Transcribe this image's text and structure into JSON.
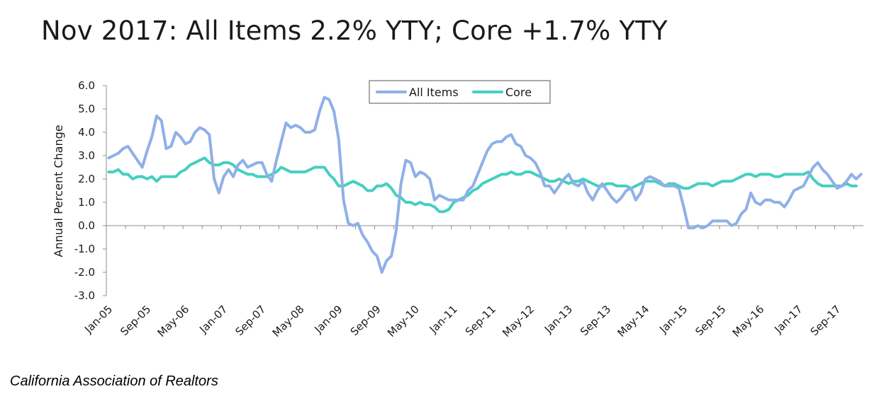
{
  "source": "California Association of Realtors",
  "colors": {
    "all_items": "#8fb0e8",
    "core": "#45cfc0",
    "axis": "#8c8c8c"
  },
  "chart_data": {
    "type": "line",
    "title": "Nov 2017: All Items 2.2% YTY; Core +1.7% YTY",
    "xlabel": "",
    "ylabel": "Annual Percent Change",
    "ylim": [
      -3.0,
      6.0
    ],
    "yticks": [
      "6.0",
      "5.0",
      "4.0",
      "3.0",
      "2.0",
      "1.0",
      "0.0",
      "-1.0",
      "-2.0",
      "-3.0"
    ],
    "xtick_labels": [
      "Jan-05",
      "Sep-05",
      "May-06",
      "Jan-07",
      "Sep-07",
      "May-08",
      "Jan-09",
      "Sep-09",
      "May-10",
      "Jan-11",
      "Sep-11",
      "May-12",
      "Jan-13",
      "Sep-13",
      "May-14",
      "Jan-15",
      "Sep-15",
      "May-16",
      "Jan-17",
      "Sep-17"
    ],
    "x_start": "Jan-05",
    "x_end": "Nov-17",
    "legend_position": "top-center",
    "grid": false,
    "series": [
      {
        "name": "All Items",
        "values": [
          2.9,
          3.0,
          3.1,
          3.3,
          3.4,
          3.1,
          2.8,
          2.5,
          3.2,
          3.8,
          4.7,
          4.5,
          3.3,
          3.4,
          4.0,
          3.8,
          3.5,
          3.6,
          4.0,
          4.2,
          4.1,
          3.9,
          2.0,
          1.4,
          2.1,
          2.4,
          2.1,
          2.6,
          2.8,
          2.5,
          2.6,
          2.7,
          2.7,
          2.2,
          1.9,
          2.8,
          3.6,
          4.4,
          4.2,
          4.3,
          4.2,
          4.0,
          4.0,
          4.1,
          4.9,
          5.5,
          5.4,
          4.9,
          3.7,
          1.1,
          0.1,
          0.0,
          0.1,
          -0.4,
          -0.7,
          -1.1,
          -1.3,
          -2.0,
          -1.5,
          -1.3,
          -0.2,
          1.8,
          2.8,
          2.7,
          2.1,
          2.3,
          2.2,
          2.0,
          1.1,
          1.3,
          1.2,
          1.1,
          1.1,
          1.1,
          1.1,
          1.5,
          1.7,
          2.2,
          2.7,
          3.2,
          3.5,
          3.6,
          3.6,
          3.8,
          3.9,
          3.5,
          3.4,
          3.0,
          2.9,
          2.7,
          2.3,
          1.7,
          1.7,
          1.4,
          1.7,
          2.0,
          2.2,
          1.8,
          1.7,
          1.9,
          1.4,
          1.1,
          1.5,
          1.8,
          1.5,
          1.2,
          1.0,
          1.2,
          1.5,
          1.6,
          1.1,
          1.4,
          2.0,
          2.1,
          2.0,
          1.9,
          1.7,
          1.7,
          1.7,
          1.6,
          0.8,
          -0.1,
          -0.1,
          0.0,
          -0.1,
          0.0,
          0.2,
          0.2,
          0.2,
          0.2,
          0.0,
          0.1,
          0.5,
          0.7,
          1.4,
          1.0,
          0.9,
          1.1,
          1.1,
          1.0,
          1.0,
          0.8,
          1.1,
          1.5,
          1.6,
          1.7,
          2.1,
          2.5,
          2.7,
          2.4,
          2.2,
          1.9,
          1.6,
          1.7,
          1.9,
          2.2,
          2.0,
          2.2
        ]
      },
      {
        "name": "Core",
        "values": [
          2.3,
          2.3,
          2.4,
          2.2,
          2.2,
          2.0,
          2.1,
          2.1,
          2.0,
          2.1,
          1.9,
          2.1,
          2.1,
          2.1,
          2.1,
          2.3,
          2.4,
          2.6,
          2.7,
          2.8,
          2.9,
          2.7,
          2.6,
          2.6,
          2.7,
          2.7,
          2.6,
          2.4,
          2.3,
          2.2,
          2.2,
          2.1,
          2.1,
          2.1,
          2.2,
          2.3,
          2.5,
          2.4,
          2.3,
          2.3,
          2.3,
          2.3,
          2.4,
          2.5,
          2.5,
          2.5,
          2.2,
          2.0,
          1.7,
          1.7,
          1.8,
          1.9,
          1.8,
          1.7,
          1.5,
          1.5,
          1.7,
          1.7,
          1.8,
          1.6,
          1.3,
          1.2,
          1.0,
          1.0,
          0.9,
          1.0,
          0.9,
          0.9,
          0.8,
          0.6,
          0.6,
          0.7,
          1.0,
          1.1,
          1.2,
          1.3,
          1.5,
          1.6,
          1.8,
          1.9,
          2.0,
          2.1,
          2.2,
          2.2,
          2.3,
          2.2,
          2.2,
          2.3,
          2.3,
          2.2,
          2.1,
          2.0,
          1.9,
          1.9,
          2.0,
          1.9,
          1.8,
          1.9,
          1.9,
          2.0,
          1.9,
          1.8,
          1.7,
          1.7,
          1.8,
          1.8,
          1.7,
          1.7,
          1.7,
          1.6,
          1.7,
          1.8,
          1.9,
          1.9,
          1.9,
          1.8,
          1.7,
          1.8,
          1.8,
          1.7,
          1.6,
          1.6,
          1.7,
          1.8,
          1.8,
          1.8,
          1.7,
          1.8,
          1.9,
          1.9,
          1.9,
          2.0,
          2.1,
          2.2,
          2.2,
          2.1,
          2.2,
          2.2,
          2.2,
          2.1,
          2.1,
          2.2,
          2.2,
          2.2,
          2.2,
          2.2,
          2.3,
          2.0,
          1.8,
          1.7,
          1.7,
          1.7,
          1.7,
          1.7,
          1.8,
          1.7,
          1.7
        ]
      }
    ]
  }
}
